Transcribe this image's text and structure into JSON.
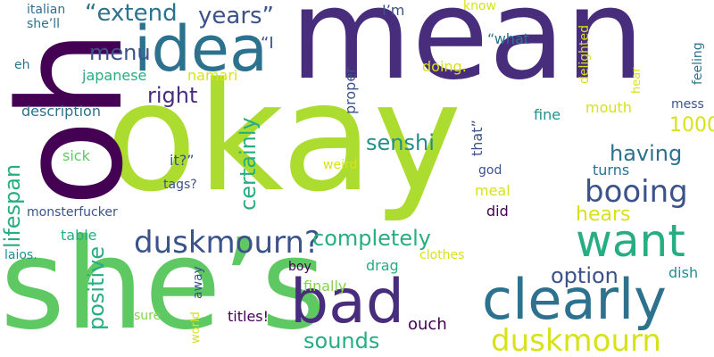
{
  "palette": {
    "purple": "#472d7b",
    "deep_purple": "#440154",
    "indigo": "#3b528b",
    "blue": "#2c728e",
    "teal": "#21908d",
    "green_teal": "#27ad81",
    "green": "#5ec962",
    "lime": "#addc30",
    "yellow": "#d8e219",
    "light_green": "#84d44b",
    "gold": "#c8e020"
  },
  "words": [
    {
      "text": "okay",
      "color": "#addc30",
      "rotated": false
    },
    {
      "text": "oh",
      "color": "#440154",
      "rotated": true
    },
    {
      "text": "mean",
      "color": "#472d7b",
      "rotated": false
    },
    {
      "text": "she’s",
      "color": "#5ec962",
      "rotated": false
    },
    {
      "text": "idea",
      "color": "#2c728e",
      "rotated": false
    },
    {
      "text": "bad",
      "color": "#472d7b",
      "rotated": false
    },
    {
      "text": "clearly",
      "color": "#2c728e",
      "rotated": false
    },
    {
      "text": "want",
      "color": "#27ad81",
      "rotated": false
    },
    {
      "text": "duskmourn?",
      "color": "#3b528b",
      "rotated": false
    },
    {
      "text": "duskmourn",
      "color": "#d8e219",
      "rotated": false
    },
    {
      "text": "booing",
      "color": "#3b528b",
      "rotated": false
    },
    {
      "text": "“extend",
      "color": "#2c728e",
      "rotated": false
    },
    {
      "text": "years”",
      "color": "#3b528b",
      "rotated": false
    },
    {
      "text": "menu",
      "color": "#3b528b",
      "rotated": false
    },
    {
      "text": "right",
      "color": "#472d7b",
      "rotated": false
    },
    {
      "text": "senshi",
      "color": "#21908d",
      "rotated": false
    },
    {
      "text": "having",
      "color": "#2c728e",
      "rotated": false
    },
    {
      "text": "completely",
      "color": "#27ad81",
      "rotated": false
    },
    {
      "text": "option",
      "color": "#3b528b",
      "rotated": false
    },
    {
      "text": "hears",
      "color": "#d8e219",
      "rotated": false
    },
    {
      "text": "1000",
      "color": "#d8e219",
      "rotated": false
    },
    {
      "text": "sounds",
      "color": "#27ad81",
      "rotated": false
    },
    {
      "text": "certainly",
      "color": "#27ad81",
      "rotated": true
    },
    {
      "text": "lifespan",
      "color": "#27ad81",
      "rotated": true
    },
    {
      "text": "positive",
      "color": "#27ad81",
      "rotated": true
    },
    {
      "text": "“I",
      "color": "#3b528b",
      "rotated": false
    },
    {
      "text": "japanese",
      "color": "#27ad81",
      "rotated": false
    },
    {
      "text": "namari",
      "color": "#d8e219",
      "rotated": false
    },
    {
      "text": "description",
      "color": "#2c728e",
      "rotated": false
    },
    {
      "text": "doing.",
      "color": "#d8e219",
      "rotated": false
    },
    {
      "text": "proper",
      "color": "#3b528b",
      "rotated": true
    },
    {
      "text": "“what",
      "color": "#2c728e",
      "rotated": false
    },
    {
      "text": "I’m",
      "color": "#3b528b",
      "rotated": false
    },
    {
      "text": "know",
      "color": "#d8e219",
      "rotated": false
    },
    {
      "text": "delighted",
      "color": "#d8e219",
      "rotated": true
    },
    {
      "text": "feeling",
      "color": "#2c728e",
      "rotated": true
    },
    {
      "text": "italian",
      "color": "#2c728e",
      "rotated": false
    },
    {
      "text": "she’ll",
      "color": "#2c728e",
      "rotated": false
    },
    {
      "text": "eh",
      "color": "#2c728e",
      "rotated": false
    },
    {
      "text": "mess",
      "color": "#3b528b",
      "rotated": false
    },
    {
      "text": "hear",
      "color": "#d8e219",
      "rotated": true
    },
    {
      "text": "mouth",
      "color": "#d8e219",
      "rotated": false
    },
    {
      "text": "fine",
      "color": "#21908d",
      "rotated": false
    },
    {
      "text": "that”",
      "color": "#3b528b",
      "rotated": true
    },
    {
      "text": "sick",
      "color": "#5ec962",
      "rotated": false
    },
    {
      "text": "it?”",
      "color": "#3b528b",
      "rotated": false
    },
    {
      "text": "weird",
      "color": "#d8e219",
      "rotated": false
    },
    {
      "text": "god",
      "color": "#3b528b",
      "rotated": false
    },
    {
      "text": "turns",
      "color": "#2c728e",
      "rotated": false
    },
    {
      "text": "tags?",
      "color": "#3b528b",
      "rotated": false
    },
    {
      "text": "meal",
      "color": "#d8e219",
      "rotated": false
    },
    {
      "text": "monsterfucker",
      "color": "#3b528b",
      "rotated": false
    },
    {
      "text": "did",
      "color": "#440154",
      "rotated": false
    },
    {
      "text": "table",
      "color": "#27ad81",
      "rotated": false
    },
    {
      "text": "laios.",
      "color": "#21908d",
      "rotated": false
    },
    {
      "text": "clothes",
      "color": "#d8e219",
      "rotated": false
    },
    {
      "text": "boy",
      "color": "#440154",
      "rotated": false
    },
    {
      "text": "drag",
      "color": "#27ad81",
      "rotated": false
    },
    {
      "text": "dish",
      "color": "#21908d",
      "rotated": false
    },
    {
      "text": "away",
      "color": "#3b528b",
      "rotated": true
    },
    {
      "text": "finally",
      "color": "#84d44b",
      "rotated": false
    },
    {
      "text": "sure",
      "color": "#84d44b",
      "rotated": false
    },
    {
      "text": "world",
      "color": "#d8e219",
      "rotated": true
    },
    {
      "text": "titles!",
      "color": "#440154",
      "rotated": false
    },
    {
      "text": "ouch",
      "color": "#440154",
      "rotated": false
    }
  ]
}
